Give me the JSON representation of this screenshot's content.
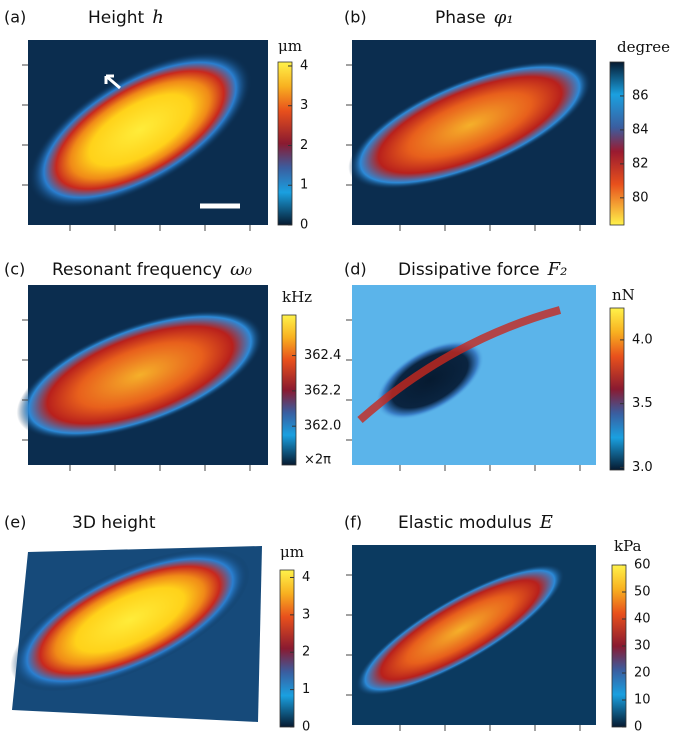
{
  "panels": [
    {
      "label": "(a)",
      "title": "Height",
      "symbol": "h",
      "unit": "μm",
      "lim": [
        0,
        4.1
      ],
      "ticks": [
        0,
        1,
        2,
        3,
        4
      ]
    },
    {
      "label": "(b)",
      "title": "Phase",
      "symbol": "φ₁",
      "unit": "degree",
      "lim": [
        78.4,
        88
      ],
      "ticks": [
        80,
        82,
        84,
        86
      ]
    },
    {
      "label": "(c)",
      "title": "Resonant frequency",
      "symbol": "ω₀",
      "unit": "kHz",
      "lim": [
        361.78,
        362.63
      ],
      "ticks": [
        {
          "value": 362,
          "label": "362.0"
        },
        362.2,
        362.4
      ],
      "note": "×2π"
    },
    {
      "label": "(d)",
      "title": "Dissipative force",
      "symbol": "F₂",
      "unit": "nN",
      "lim": [
        2.98,
        4.25
      ],
      "ticks": [
        {
          "value": 3,
          "label": "3.0"
        },
        3.5,
        {
          "value": 4,
          "label": "4.0"
        }
      ]
    },
    {
      "label": "(e)",
      "title": "3D height",
      "unit": "μm",
      "lim": [
        0,
        4.2
      ],
      "ticks": [
        0,
        1,
        2,
        3,
        4
      ]
    },
    {
      "label": "(f)",
      "title": "Elastic modulus",
      "symbol": "E",
      "unit": "kPa",
      "lim": [
        0,
        60
      ],
      "ticks": [
        0,
        10,
        20,
        30,
        40,
        50,
        60
      ]
    }
  ]
}
